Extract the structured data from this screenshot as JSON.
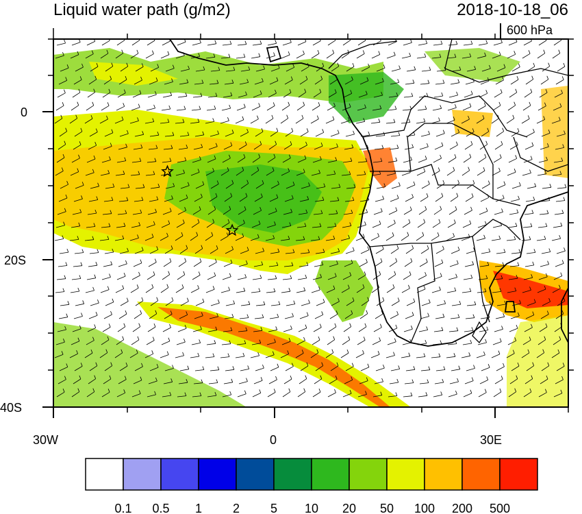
{
  "header": {
    "title": "Liquid water path (g/m2)",
    "datetime": "2018-10-18_06",
    "level": "600 hPa"
  },
  "axes": {
    "lat_labels": [
      "0",
      "20S",
      "40S"
    ],
    "lon_labels": [
      "30W",
      "0",
      "30E"
    ]
  },
  "markers": [
    {
      "name": "star-marker-north",
      "lon": -14.5,
      "lat": -8.0
    },
    {
      "name": "star-marker-south",
      "lon": -5.7,
      "lat": -16.0
    }
  ],
  "colorbar": {
    "colors": [
      "#ffffff",
      "#a0a0f2",
      "#4646f0",
      "#0000e8",
      "#004c9a",
      "#068c3c",
      "#2eb81e",
      "#84d40c",
      "#e4f200",
      "#ffc000",
      "#ff6400",
      "#ff1e00"
    ],
    "tick_labels": [
      "0.1",
      "0.5",
      "1",
      "2",
      "5",
      "10",
      "20",
      "50",
      "100",
      "200",
      "500"
    ]
  }
}
